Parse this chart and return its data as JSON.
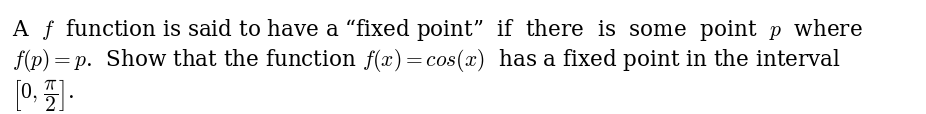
{
  "background_color": "#ffffff",
  "text_color": "#000000",
  "line1": "A  $f$  function is said to have a “fixed point”  if  there  is  some  point  $p$  where",
  "line2": "$f(p) = p$.  Show that the function $f(x) = cos(x)$  has a fixed point in the interval",
  "line3": "$\\left[0,\\, \\dfrac{\\pi}{2}\\right]$.",
  "font_size": 15.5,
  "fig_width": 9.26,
  "fig_height": 1.15,
  "dpi": 100
}
